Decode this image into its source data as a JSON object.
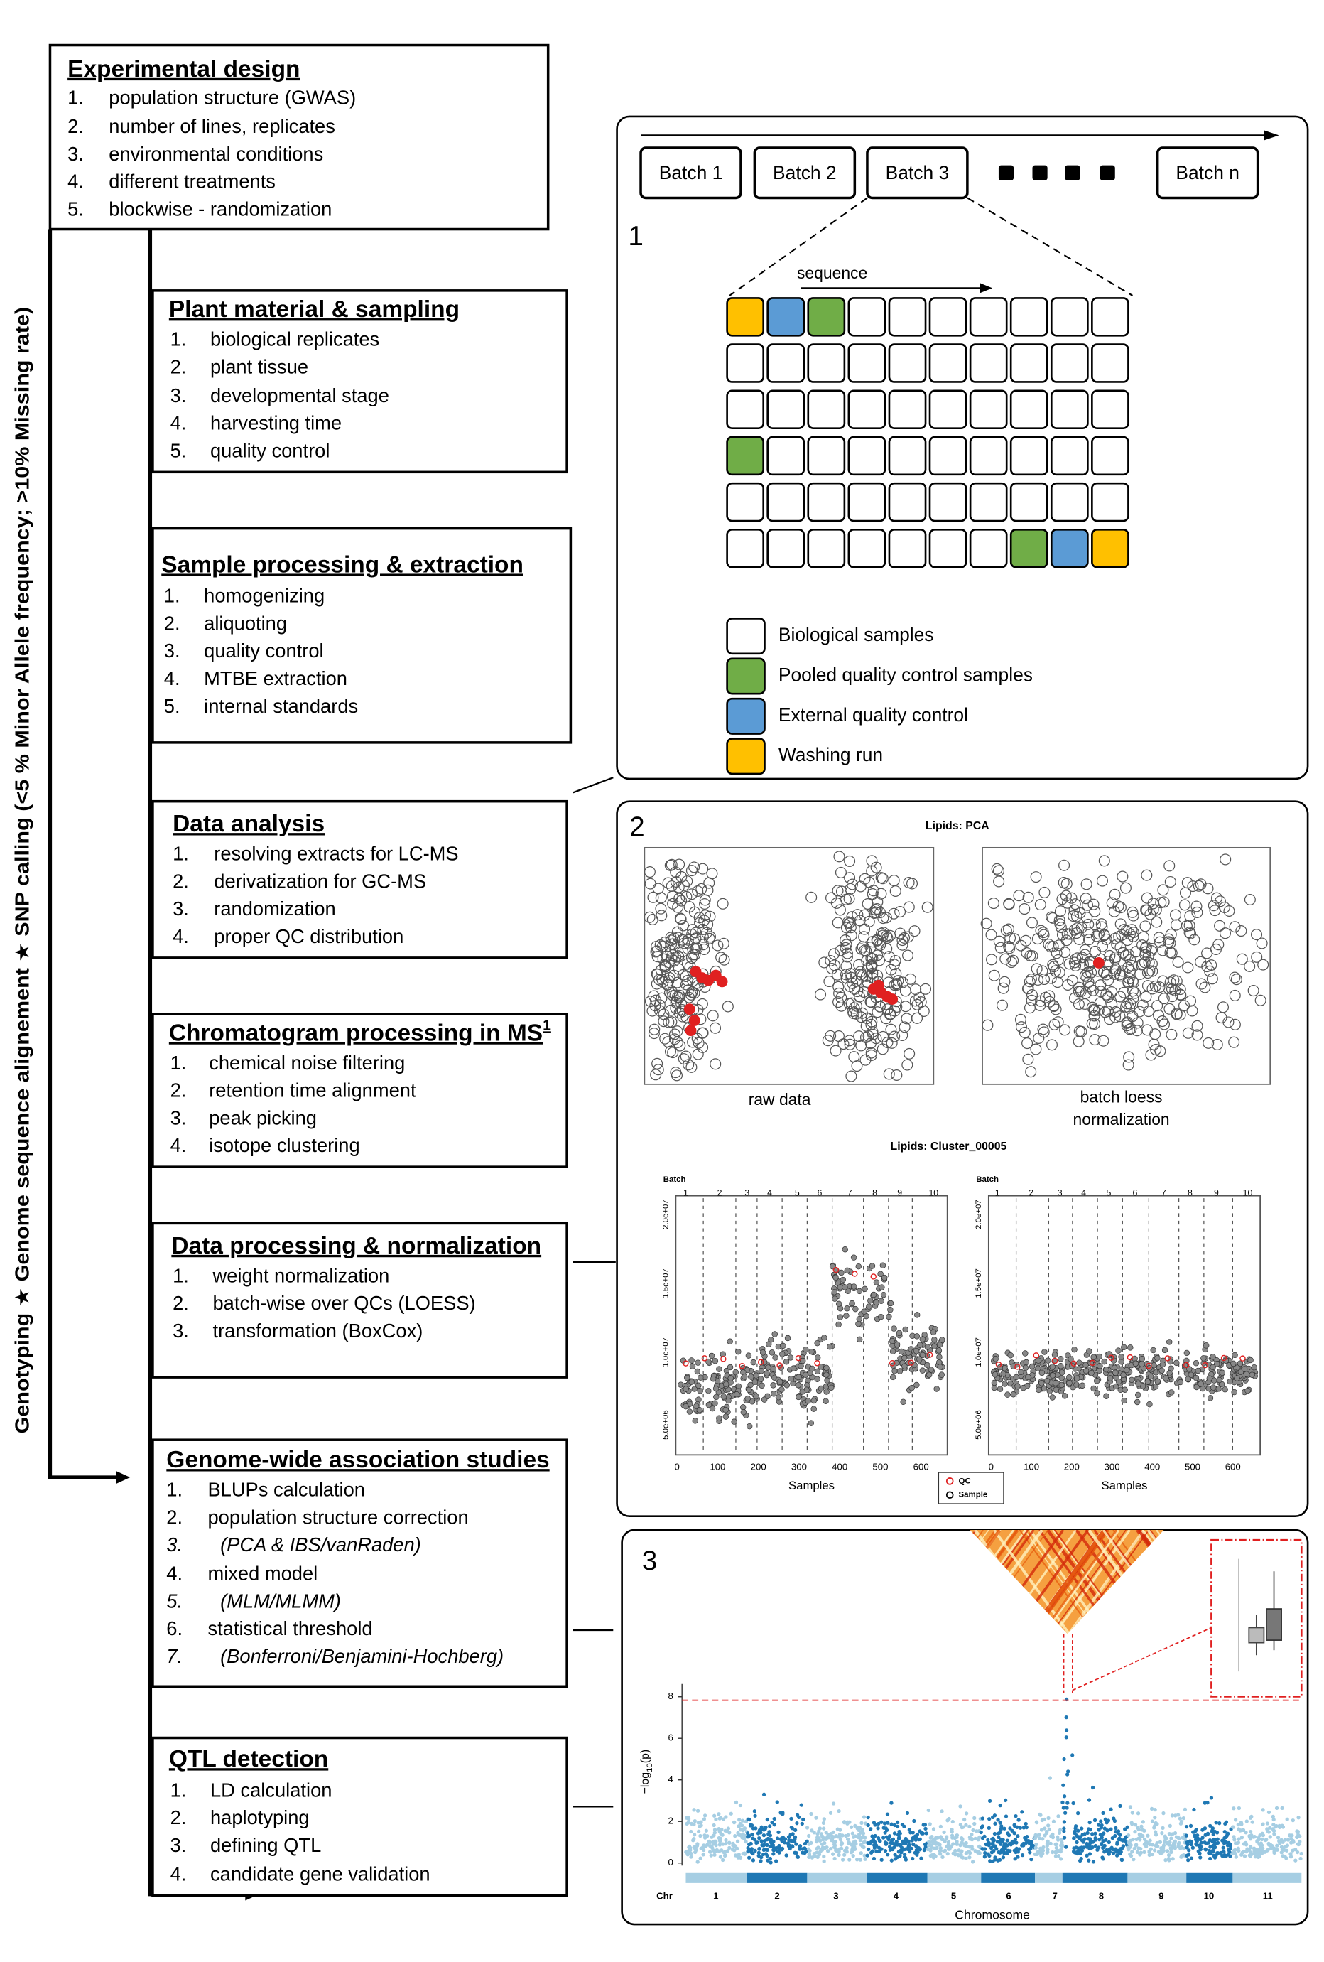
{
  "sidebar_label": "Genotyping  ★  Genome sequence alignement  ★  SNP calling (<5 % Minor Allele frequency; >10% Missing rate)",
  "steps": [
    {
      "title": "Experimental design",
      "items": [
        {
          "n": "1.",
          "text": "population structure (GWAS)"
        },
        {
          "n": "2.",
          "text": "number of lines, replicates"
        },
        {
          "n": "3.",
          "text": "environmental conditions"
        },
        {
          "n": "4.",
          "text": "different treatments"
        },
        {
          "n": "5.",
          "text": "blockwise - randomization"
        }
      ]
    },
    {
      "title": "Plant material & sampling",
      "items": [
        {
          "n": "1.",
          "text": "biological replicates"
        },
        {
          "n": "2.",
          "text": "plant tissue"
        },
        {
          "n": "3.",
          "text": "developmental stage"
        },
        {
          "n": "4.",
          "text": "harvesting time"
        },
        {
          "n": "5.",
          "text": "quality control"
        }
      ]
    },
    {
      "title": "Sample processing & extraction",
      "items": [
        {
          "n": "1.",
          "text": "homogenizing"
        },
        {
          "n": "2.",
          "text": "aliquoting"
        },
        {
          "n": "3.",
          "text": "quality control"
        },
        {
          "n": "4.",
          "text": "MTBE extraction"
        },
        {
          "n": "5.",
          "text": "internal standards"
        }
      ]
    },
    {
      "title": "Data analysis",
      "items": [
        {
          "n": "1.",
          "text": "resolving extracts for LC-MS"
        },
        {
          "n": "2.",
          "text": "derivatization for GC-MS"
        },
        {
          "n": "3.",
          "text": "randomization"
        },
        {
          "n": "4.",
          "text": "proper QC distribution"
        }
      ]
    },
    {
      "title": "Chromatogram processing in MS",
      "title_sup": "1",
      "items": [
        {
          "n": "1.",
          "text": "chemical noise filtering"
        },
        {
          "n": "2.",
          "text": "retention time alignment"
        },
        {
          "n": "3.",
          "text": "peak picking"
        },
        {
          "n": "4.",
          "text": "isotope clustering"
        }
      ]
    },
    {
      "title": "Data processing & normalization",
      "items": [
        {
          "n": "1.",
          "text": "weight normalization"
        },
        {
          "n": "2.",
          "text": "batch-wise over QCs (LOESS)"
        },
        {
          "n": "3.",
          "text": "transformation (BoxCox)"
        }
      ]
    },
    {
      "title": "Genome-wide association studies",
      "items": [
        {
          "n": "1.",
          "text": "BLUPs calculation"
        },
        {
          "n": "2.",
          "text": "population structure correction"
        },
        {
          "n": "3.",
          "text": "(PCA & IBS/vanRaden)",
          "italic": true
        },
        {
          "n": "4.",
          "text": "mixed model"
        },
        {
          "n": "5.",
          "text": "(MLM/MLMM)",
          "italic": true
        },
        {
          "n": "6.",
          "text": "statistical threshold"
        },
        {
          "n": "7.",
          "text": "(Bonferroni/Benjamini-Hochberg)",
          "italic": true
        }
      ]
    },
    {
      "title": "QTL detection",
      "items": [
        {
          "n": "1.",
          "text": "LD calculation"
        },
        {
          "n": "2.",
          "text": "haplotyping"
        },
        {
          "n": "3.",
          "text": "defining QTL"
        },
        {
          "n": "4.",
          "text": "candidate gene validation"
        }
      ]
    }
  ],
  "panel1": {
    "number": "1",
    "batches": [
      "Batch 1",
      "Batch 2",
      "Batch 3",
      "Batch n"
    ],
    "sequence_label": "sequence",
    "legend": [
      {
        "label": "Biological samples",
        "color": "#ffffff"
      },
      {
        "label": "Pooled quality control samples",
        "color": "#70ad47"
      },
      {
        "label": "External quality control",
        "color": "#5b9bd5"
      },
      {
        "label": "Washing run",
        "color": "#ffc000"
      }
    ]
  },
  "panel2": {
    "number": "2",
    "pca_title": "Lipids: PCA",
    "raw_caption": "raw data",
    "norm_caption_lines": [
      "batch loess",
      "normalization"
    ],
    "cluster_title": "Lipids: Cluster_00005",
    "batch_label": "Batch",
    "batches": [
      1,
      2,
      3,
      4,
      5,
      6,
      7,
      8,
      9,
      10
    ],
    "yticks": [
      "2.0e+07",
      "1.5e+07",
      "1.0e+07",
      "5.0e+06"
    ],
    "xticks": [
      0,
      100,
      200,
      300,
      400,
      500,
      600
    ],
    "xlabel": "Samples",
    "legend": [
      "QC",
      "Sample"
    ]
  },
  "panel3": {
    "number": "3",
    "ylabel_main": "−log",
    "ylabel_sub": "10",
    "ylabel_end": "(p)",
    "yticks": [
      0,
      2,
      4,
      6,
      8
    ],
    "chr_label": "Chr",
    "chromosomes": [
      1,
      2,
      3,
      4,
      5,
      6,
      7,
      8,
      9,
      10,
      11
    ],
    "xlabel": "Chromosome"
  }
}
